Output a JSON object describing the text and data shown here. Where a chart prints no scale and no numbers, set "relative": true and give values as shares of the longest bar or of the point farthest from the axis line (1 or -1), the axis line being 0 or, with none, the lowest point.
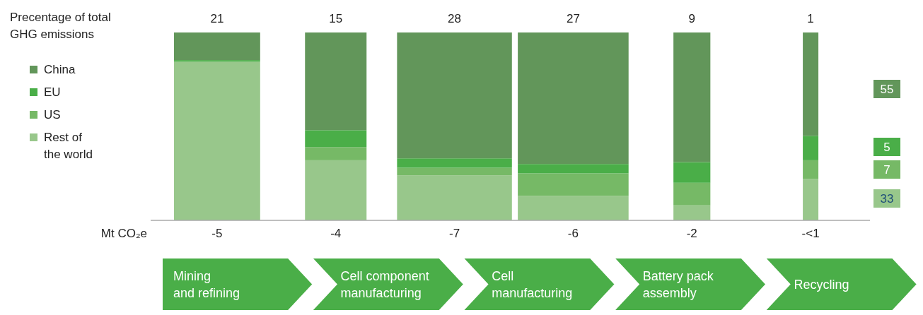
{
  "chart_data": {
    "type": "bar",
    "stacked": true,
    "relative": true,
    "title": "Precentage of total GHG emissions",
    "xlabel": "Mt CO₂e",
    "categories": [
      "-5",
      "-4",
      "-7",
      "-6",
      "-2",
      "-<1"
    ],
    "series": [
      {
        "name": "Rest of the world",
        "color": "#98c78b",
        "values": [
          0.845,
          0.32,
          0.24,
          0.13,
          0.08,
          0.22
        ]
      },
      {
        "name": "US",
        "color": "#76b966",
        "values": [
          0,
          0.07,
          0.04,
          0.12,
          0.12,
          0.1
        ]
      },
      {
        "name": "EU",
        "color": "#4aae48",
        "values": [
          0.008,
          0.09,
          0.05,
          0.05,
          0.11,
          0.13
        ]
      },
      {
        "name": "China",
        "color": "#62965a",
        "values": [
          0.147,
          0.52,
          0.67,
          0.7,
          0.69,
          0.55
        ]
      }
    ],
    "legend": "left",
    "annotations": [
      "21",
      "15",
      "28",
      "27",
      "9",
      "1",
      "Mining\nand refining",
      "Cell component\nmanufacturing",
      "Cell\nmanufacturing",
      "Battery pack\nassembly",
      "Recycling",
      "33",
      "7",
      "5",
      "55"
    ]
  }
}
